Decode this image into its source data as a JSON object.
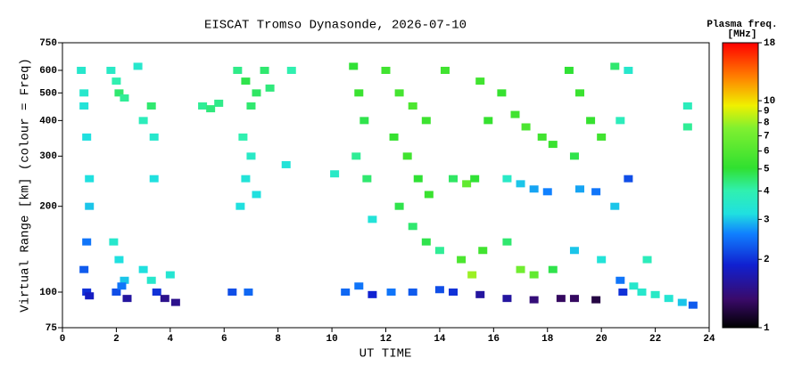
{
  "chart_data": {
    "type": "scatter",
    "title": "EISCAT Tromso Dynasonde, 2026-07-10",
    "x_label": "UT TIME",
    "y_label": "Virtual Range [km] (colour = Freq)",
    "colorbar_title": "Plasma freq.",
    "colorbar_unit": "[MHz]",
    "xlim": [
      0,
      24
    ],
    "xticks": [
      0,
      2,
      4,
      6,
      8,
      10,
      12,
      14,
      16,
      18,
      20,
      22,
      24
    ],
    "ylim": [
      75,
      750
    ],
    "yticks": [
      75,
      100,
      200,
      300,
      400,
      500,
      600,
      750
    ],
    "yscale": "log",
    "clim": [
      1,
      18
    ],
    "cticks": [
      1,
      2,
      3,
      4,
      5,
      6,
      7,
      8,
      9,
      10,
      18
    ],
    "cscale": "log",
    "x": [
      0.7,
      0.8,
      0.8,
      0.9,
      1.0,
      1.0,
      0.9,
      0.8,
      0.9,
      1.0,
      1.8,
      2.0,
      2.1,
      2.3,
      1.9,
      2.1,
      2.3,
      2.0,
      2.4,
      2.2,
      2.8,
      3.0,
      3.3,
      3.4,
      3.4,
      3.0,
      3.3,
      3.5,
      3.8,
      4.0,
      4.2,
      5.2,
      5.5,
      5.8,
      6.5,
      6.8,
      7.0,
      7.2,
      6.7,
      7.0,
      6.8,
      6.6,
      7.2,
      6.3,
      6.9,
      7.5,
      7.7,
      8.3,
      8.5,
      10.1,
      10.5,
      10.8,
      11,
      11.2,
      10.9,
      11.3,
      11.5,
      11,
      11.5,
      12,
      12.5,
      13,
      13.5,
      12.3,
      12.8,
      13.2,
      13.6,
      12.5,
      13,
      13.5,
      14,
      12.2,
      13,
      14,
      14.2,
      14.5,
      15,
      15.3,
      14.8,
      15.2,
      15.6,
      14.5,
      15.5,
      15.8,
      15.5,
      16.3,
      16.8,
      17.2,
      17.8,
      18.2,
      16.5,
      17,
      17.5,
      18,
      16.5,
      17,
      17.5,
      18.2,
      16.5,
      17.5,
      18.5,
      18.8,
      19.2,
      19.6,
      20,
      19,
      19.2,
      19.8,
      19,
      20,
      19,
      19.8,
      20.5,
      20.7,
      20.5,
      20.7,
      20.8,
      21,
      21,
      21.2,
      21.5,
      22,
      22.5,
      23,
      23.4,
      21.7,
      23.2,
      23.2
    ],
    "y": [
      600,
      500,
      450,
      350,
      250,
      200,
      150,
      120,
      100,
      97,
      600,
      550,
      500,
      480,
      150,
      130,
      110,
      100,
      95,
      105,
      620,
      400,
      450,
      350,
      250,
      120,
      110,
      100,
      95,
      115,
      92,
      450,
      440,
      460,
      600,
      550,
      450,
      500,
      350,
      300,
      250,
      200,
      220,
      100,
      100,
      600,
      520,
      280,
      600,
      260,
      100,
      620,
      500,
      400,
      300,
      250,
      180,
      105,
      98,
      600,
      500,
      450,
      400,
      350,
      300,
      250,
      220,
      200,
      170,
      150,
      140,
      100,
      100,
      102,
      600,
      250,
      240,
      250,
      130,
      115,
      140,
      100,
      98,
      400,
      550,
      500,
      420,
      380,
      350,
      330,
      250,
      240,
      230,
      225,
      150,
      120,
      115,
      120,
      95,
      94,
      95,
      600,
      500,
      400,
      350,
      300,
      230,
      225,
      140,
      130,
      95,
      94,
      620,
      400,
      200,
      110,
      100,
      600,
      250,
      105,
      100,
      98,
      95,
      92,
      90,
      130,
      450,
      380
    ],
    "values": [
      3.5,
      3.5,
      3.3,
      3.2,
      3.2,
      3,
      2.5,
      2.3,
      2.0,
      1.8,
      3.6,
      4,
      4.5,
      4.2,
      3.5,
      3.2,
      3,
      2.2,
      1.6,
      2.5,
      3.5,
      3.8,
      4.5,
      3.5,
      3.2,
      3.2,
      3.5,
      2,
      1.5,
      3.4,
      1.5,
      4.2,
      4.4,
      4.3,
      4.3,
      4.8,
      4.5,
      4.6,
      4,
      3.6,
      3.3,
      3.2,
      3.2,
      2.2,
      2.4,
      4.5,
      4.4,
      3.3,
      4,
      3.6,
      2.4,
      5,
      5.3,
      4.8,
      4.2,
      4.5,
      3.3,
      2.5,
      1.9,
      5.5,
      5.6,
      5.8,
      5.4,
      5.2,
      5.5,
      5,
      5.3,
      4.8,
      4.5,
      4.8,
      4.2,
      2.5,
      2.3,
      2.2,
      5.5,
      4.6,
      6.5,
      5,
      5.8,
      8,
      5.5,
      2,
      1.6,
      5.2,
      5.5,
      5.2,
      5.5,
      5.8,
      5.5,
      5.3,
      3.6,
      3,
      2.8,
      2.6,
      4.5,
      7,
      6.5,
      4.8,
      1.6,
      1.4,
      1.3,
      5,
      5.3,
      5.2,
      5.5,
      4.8,
      2.8,
      2.5,
      3,
      3.3,
      1.3,
      1.2,
      4.5,
      3.8,
      3,
      2.5,
      2,
      3.5,
      2.2,
      3.5,
      3.5,
      3.6,
      3.4,
      3,
      2.3,
      3.8,
      3.8,
      4.2
    ]
  }
}
